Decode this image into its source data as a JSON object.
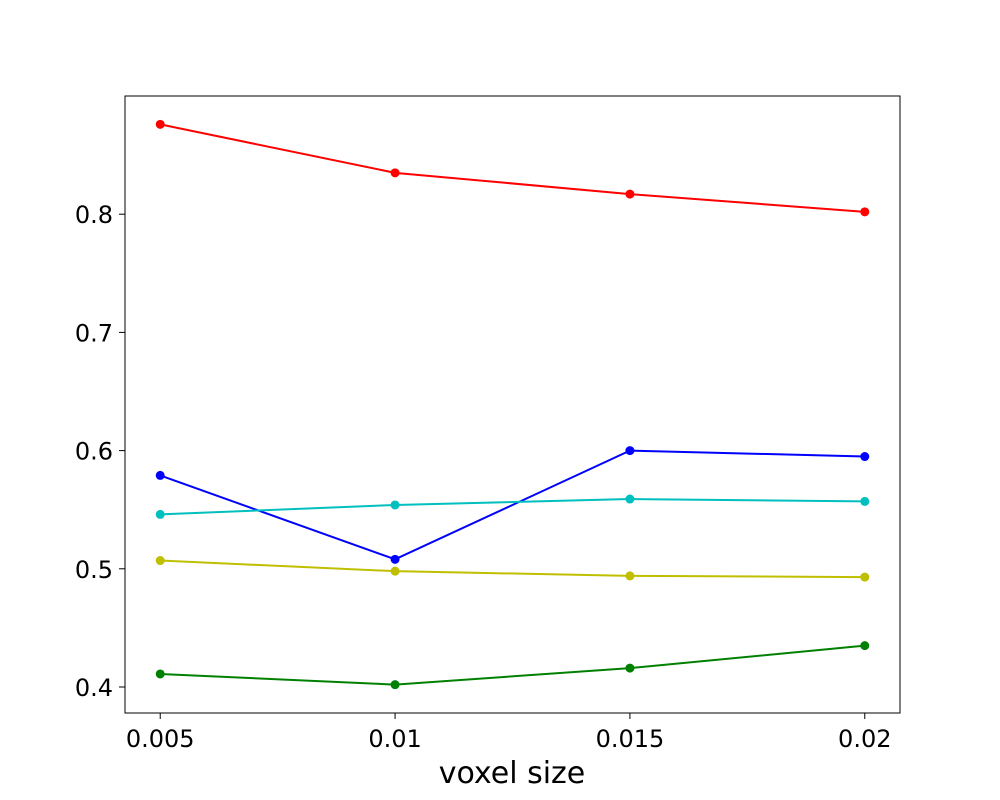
{
  "chart_data": {
    "type": "line",
    "title": "",
    "xlabel": "voxel size",
    "ylabel": "",
    "x": [
      0.005,
      0.01,
      0.015,
      0.02
    ],
    "x_ticks": [
      "0.005",
      "0.01",
      "0.015",
      "0.02"
    ],
    "y_ticks": [
      "0.4",
      "0.5",
      "0.6",
      "0.7",
      "0.8"
    ],
    "xlim": [
      0.00425,
      0.02075
    ],
    "ylim": [
      0.378,
      0.9
    ],
    "grid": false,
    "legend": "none",
    "series": [
      {
        "color": "#ff0000",
        "marker": "circle",
        "values": [
          0.876,
          0.835,
          0.817,
          0.802
        ]
      },
      {
        "color": "#0000ff",
        "marker": "circle",
        "values": [
          0.579,
          0.508,
          0.6,
          0.595
        ]
      },
      {
        "color": "#00bfbf",
        "marker": "circle",
        "values": [
          0.546,
          0.554,
          0.559,
          0.557
        ]
      },
      {
        "color": "#bfbf00",
        "marker": "circle",
        "values": [
          0.507,
          0.498,
          0.494,
          0.493
        ]
      },
      {
        "color": "#008000",
        "marker": "circle",
        "values": [
          0.411,
          0.402,
          0.416,
          0.435
        ]
      }
    ]
  }
}
